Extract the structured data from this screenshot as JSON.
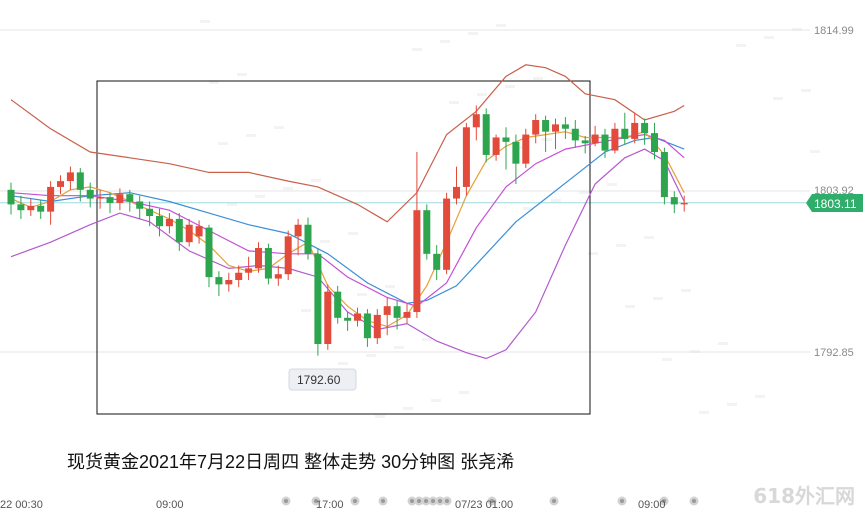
{
  "caption": "现货黄金2021年7月22日周四 整体走势 30分钟图 张尧浠",
  "watermark": "618外汇网",
  "chart_data": {
    "type": "candlestick",
    "price_scale": [
      "1814.99",
      "1803.92",
      "1792.85"
    ],
    "current_price": "1803.11",
    "low_marker": "1792.60",
    "time_labels": [
      "22 00:30",
      "09:00",
      "17:00",
      "07/23 01:00",
      "09:00"
    ],
    "candles": [
      [
        1804.0,
        1803.0,
        1804.5,
        1802.3
      ],
      [
        1803.0,
        1802.6,
        1803.6,
        1802.0
      ],
      [
        1802.6,
        1802.9,
        1803.4,
        1802.2
      ],
      [
        1802.9,
        1802.5,
        1803.3,
        1802.0
      ],
      [
        1802.5,
        1804.2,
        1804.6,
        1801.6
      ],
      [
        1804.2,
        1804.6,
        1805.0,
        1803.7
      ],
      [
        1804.6,
        1805.2,
        1805.6,
        1804.0
      ],
      [
        1805.2,
        1804.0,
        1805.5,
        1803.2
      ],
      [
        1804.0,
        1803.4,
        1804.5,
        1802.8
      ],
      [
        1803.4,
        1803.5,
        1804.0,
        1802.7
      ],
      [
        1803.5,
        1803.1,
        1803.8,
        1802.4
      ],
      [
        1803.1,
        1803.7,
        1804.1,
        1802.6
      ],
      [
        1803.7,
        1803.2,
        1804.0,
        1802.5
      ],
      [
        1803.2,
        1802.7,
        1803.6,
        1802.0
      ],
      [
        1802.7,
        1802.2,
        1803.2,
        1801.5
      ],
      [
        1802.2,
        1801.5,
        1802.7,
        1800.8
      ],
      [
        1801.5,
        1802.0,
        1802.4,
        1801.0
      ],
      [
        1802.0,
        1800.4,
        1802.4,
        1799.8
      ],
      [
        1800.4,
        1801.6,
        1802.0,
        1800.1
      ],
      [
        1800.8,
        1801.5,
        1801.9,
        1800.3
      ],
      [
        1801.4,
        1798.0,
        1801.6,
        1797.3
      ],
      [
        1798.0,
        1797.5,
        1798.4,
        1796.7
      ],
      [
        1797.5,
        1797.8,
        1798.3,
        1797.0
      ],
      [
        1797.8,
        1798.3,
        1798.8,
        1797.3
      ],
      [
        1798.3,
        1798.6,
        1799.4,
        1797.8
      ],
      [
        1798.6,
        1800.0,
        1800.4,
        1798.3
      ],
      [
        1800.0,
        1797.9,
        1800.3,
        1797.5
      ],
      [
        1797.9,
        1798.2,
        1798.8,
        1797.4
      ],
      [
        1798.2,
        1800.8,
        1801.2,
        1797.8
      ],
      [
        1800.8,
        1801.6,
        1802.0,
        1799.5
      ],
      [
        1801.6,
        1799.6,
        1802.1,
        1799.2
      ],
      [
        1799.6,
        1793.4,
        1800.0,
        1792.6
      ],
      [
        1793.4,
        1797.0,
        1797.5,
        1793.0
      ],
      [
        1797.0,
        1795.2,
        1797.4,
        1794.8
      ],
      [
        1795.2,
        1795.0,
        1795.6,
        1794.3
      ],
      [
        1795.0,
        1795.5,
        1795.9,
        1794.6
      ],
      [
        1795.5,
        1793.8,
        1795.8,
        1793.2
      ],
      [
        1793.8,
        1795.4,
        1795.8,
        1793.4
      ],
      [
        1795.4,
        1796.0,
        1796.6,
        1794.0
      ],
      [
        1796.0,
        1795.2,
        1796.4,
        1794.4
      ],
      [
        1795.2,
        1795.6,
        1796.2,
        1794.8
      ],
      [
        1795.6,
        1802.6,
        1806.6,
        1795.2
      ],
      [
        1802.6,
        1799.6,
        1803.0,
        1799.2
      ],
      [
        1799.6,
        1798.5,
        1800.2,
        1797.8
      ],
      [
        1798.5,
        1803.4,
        1803.8,
        1798.2
      ],
      [
        1803.4,
        1804.2,
        1805.6,
        1803.0
      ],
      [
        1804.2,
        1808.3,
        1808.6,
        1803.6
      ],
      [
        1808.3,
        1809.2,
        1809.8,
        1807.4
      ],
      [
        1809.2,
        1806.4,
        1809.6,
        1805.9
      ],
      [
        1806.4,
        1807.6,
        1807.8,
        1806.0
      ],
      [
        1807.6,
        1807.3,
        1808.3,
        1805.4
      ],
      [
        1807.3,
        1805.8,
        1807.8,
        1804.4
      ],
      [
        1805.8,
        1807.8,
        1808.2,
        1805.5
      ],
      [
        1807.8,
        1808.8,
        1809.2,
        1807.2
      ],
      [
        1808.8,
        1808.0,
        1809.1,
        1806.6
      ],
      [
        1808.0,
        1808.5,
        1808.9,
        1806.8
      ],
      [
        1808.5,
        1808.2,
        1809.0,
        1807.5
      ],
      [
        1808.2,
        1807.4,
        1808.8,
        1806.9
      ],
      [
        1807.4,
        1807.2,
        1807.7,
        1806.5
      ],
      [
        1807.2,
        1807.8,
        1808.4,
        1807.0
      ],
      [
        1807.8,
        1806.7,
        1808.2,
        1806.2
      ],
      [
        1806.7,
        1808.2,
        1808.6,
        1806.5
      ],
      [
        1808.2,
        1807.5,
        1809.3,
        1807.1
      ],
      [
        1807.5,
        1808.6,
        1809.3,
        1807.2
      ],
      [
        1808.6,
        1807.9,
        1808.9,
        1807.1
      ],
      [
        1807.9,
        1806.6,
        1808.6,
        1806.1
      ],
      [
        1806.6,
        1803.5,
        1806.9,
        1803.0
      ],
      [
        1803.5,
        1803.0,
        1803.9,
        1802.4
      ],
      [
        1803.0,
        1803.1,
        1803.6,
        1802.5
      ]
    ],
    "indicators": {
      "bollinger_upper": [
        [
          0,
          1810.2
        ],
        [
          4,
          1808.2
        ],
        [
          8,
          1806.6
        ],
        [
          12,
          1806.2
        ],
        [
          16,
          1805.8
        ],
        [
          20,
          1805.2
        ],
        [
          24,
          1805.2
        ],
        [
          28,
          1804.6
        ],
        [
          31,
          1804.2
        ],
        [
          35,
          1803.0
        ],
        [
          38,
          1801.8
        ],
        [
          41,
          1803.8
        ],
        [
          44,
          1807.8
        ],
        [
          47,
          1809.4
        ],
        [
          50,
          1811.8
        ],
        [
          52,
          1812.6
        ],
        [
          54,
          1812.4
        ],
        [
          56,
          1811.8
        ],
        [
          58,
          1810.6
        ],
        [
          61,
          1810.2
        ],
        [
          64,
          1808.8
        ],
        [
          67,
          1809.4
        ],
        [
          68,
          1809.8
        ]
      ],
      "bollinger_lower": [
        [
          0,
          1799.4
        ],
        [
          4,
          1800.4
        ],
        [
          8,
          1801.6
        ],
        [
          11,
          1802.4
        ],
        [
          14,
          1801.8
        ],
        [
          18,
          1799.8
        ],
        [
          22,
          1798.6
        ],
        [
          25,
          1798.8
        ],
        [
          28,
          1798.6
        ],
        [
          31,
          1798.0
        ],
        [
          34,
          1795.6
        ],
        [
          37,
          1794.4
        ],
        [
          40,
          1794.8
        ],
        [
          43,
          1793.6
        ],
        [
          46,
          1792.8
        ],
        [
          48,
          1792.4
        ],
        [
          50,
          1793.0
        ],
        [
          53,
          1795.6
        ],
        [
          56,
          1800.2
        ],
        [
          59,
          1804.4
        ],
        [
          62,
          1806.2
        ],
        [
          64,
          1806.8
        ],
        [
          66,
          1806.0
        ],
        [
          68,
          1803.2
        ]
      ],
      "ma_fast": [
        [
          0,
          1803.4
        ],
        [
          2,
          1802.8
        ],
        [
          4,
          1803.2
        ],
        [
          6,
          1804.0
        ],
        [
          8,
          1804.2
        ],
        [
          10,
          1803.8
        ],
        [
          12,
          1803.2
        ],
        [
          14,
          1802.6
        ],
        [
          16,
          1802.0
        ],
        [
          18,
          1801.2
        ],
        [
          20,
          1800.2
        ],
        [
          22,
          1798.8
        ],
        [
          24,
          1798.4
        ],
        [
          26,
          1798.6
        ],
        [
          28,
          1799.6
        ],
        [
          30,
          1800.4
        ],
        [
          32,
          1797.4
        ],
        [
          34,
          1796.0
        ],
        [
          36,
          1795.0
        ],
        [
          38,
          1794.6
        ],
        [
          40,
          1795.4
        ],
        [
          42,
          1797.4
        ],
        [
          44,
          1800.4
        ],
        [
          46,
          1803.6
        ],
        [
          48,
          1806.0
        ],
        [
          50,
          1807.0
        ],
        [
          52,
          1807.6
        ],
        [
          54,
          1807.8
        ],
        [
          56,
          1808.0
        ],
        [
          58,
          1807.6
        ],
        [
          60,
          1807.6
        ],
        [
          62,
          1807.6
        ],
        [
          64,
          1808.0
        ],
        [
          66,
          1806.4
        ],
        [
          68,
          1803.8
        ]
      ],
      "ma_mid": [
        [
          0,
          1803.8
        ],
        [
          4,
          1803.6
        ],
        [
          8,
          1803.6
        ],
        [
          12,
          1803.2
        ],
        [
          16,
          1802.6
        ],
        [
          20,
          1801.2
        ],
        [
          24,
          1799.8
        ],
        [
          28,
          1799.6
        ],
        [
          31,
          1799.6
        ],
        [
          34,
          1798.0
        ],
        [
          38,
          1796.6
        ],
        [
          41,
          1796.0
        ],
        [
          44,
          1797.6
        ],
        [
          47,
          1801.4
        ],
        [
          50,
          1804.2
        ],
        [
          53,
          1805.8
        ],
        [
          56,
          1806.8
        ],
        [
          59,
          1807.2
        ],
        [
          62,
          1807.6
        ],
        [
          64,
          1807.8
        ],
        [
          66,
          1807.4
        ],
        [
          68,
          1806.2
        ]
      ],
      "ma_slow": [
        [
          0,
          1803.6
        ],
        [
          4,
          1803.2
        ],
        [
          8,
          1803.6
        ],
        [
          12,
          1803.8
        ],
        [
          16,
          1803.2
        ],
        [
          20,
          1802.4
        ],
        [
          24,
          1801.6
        ],
        [
          28,
          1801.0
        ],
        [
          32,
          1799.6
        ],
        [
          36,
          1797.6
        ],
        [
          40,
          1796.2
        ],
        [
          42,
          1796.4
        ],
        [
          45,
          1797.4
        ],
        [
          48,
          1799.6
        ],
        [
          51,
          1801.8
        ],
        [
          54,
          1803.4
        ],
        [
          57,
          1805.0
        ],
        [
          60,
          1806.6
        ],
        [
          63,
          1807.4
        ],
        [
          65,
          1807.6
        ],
        [
          68,
          1806.8
        ]
      ]
    },
    "colors": {
      "up": "#e24a3b",
      "down": "#2da44e",
      "bollinger_upper": "#c8604a",
      "bollinger_lower": "#b25ad0",
      "ma_fast": "#e5a13a",
      "ma_mid": "#c64fd6",
      "ma_slow": "#3c8fd8",
      "price_tag": "#2fae6b"
    }
  }
}
